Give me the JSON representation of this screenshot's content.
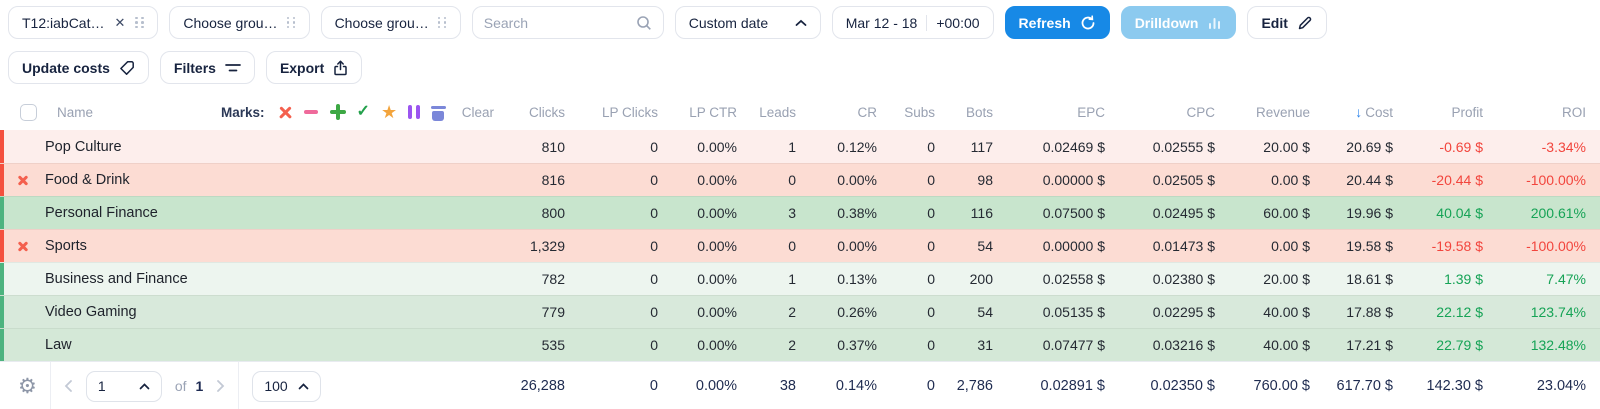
{
  "toolbar": {
    "token_pill": "T12:iabCat…",
    "group_pill_1": "Choose grou…",
    "group_pill_2": "Choose grou…",
    "search_placeholder": "Search",
    "date_preset": "Custom date",
    "date_range": "Mar 12 - 18",
    "timezone": "+00:00",
    "refresh_label": "Refresh",
    "drilldown_label": "Drilldown",
    "edit_label": "Edit"
  },
  "actions": {
    "update_costs_label": "Update costs",
    "filters_label": "Filters",
    "export_label": "Export"
  },
  "table": {
    "marks_label": "Marks:",
    "clear_label": "Clear",
    "name_column": "Name",
    "sort_column": "Cost",
    "sort_direction": "desc",
    "sort_arrow_glyph": "↓",
    "column_keys": [
      "clicks",
      "lp_clicks",
      "lp_ctr",
      "leads",
      "cr",
      "subs",
      "bots",
      "epc",
      "cpc",
      "revenue",
      "cost",
      "profit",
      "roi"
    ],
    "number_columns": [
      {
        "label": "Clicks"
      },
      {
        "label": "LP Clicks"
      },
      {
        "label": "LP CTR"
      },
      {
        "label": "Leads"
      },
      {
        "label": "CR"
      },
      {
        "label": "Subs"
      },
      {
        "label": "Bots"
      },
      {
        "label": "EPC"
      },
      {
        "label": "CPC"
      },
      {
        "label": "Revenue"
      },
      {
        "label": "Cost",
        "sorted": true
      },
      {
        "label": "Profit"
      },
      {
        "label": "ROI"
      }
    ],
    "marks": [
      {
        "icon": "x-mark-icon",
        "shape": "mk-x",
        "color": "#f4604e"
      },
      {
        "icon": "minus-mark-icon",
        "shape": "mk-minus",
        "color": "#ef6a9b"
      },
      {
        "icon": "plus-mark-icon",
        "shape": "mk-plus",
        "color": "#3da844"
      },
      {
        "icon": "check-mark-icon",
        "shape": "mk-check",
        "color": "#23a04b",
        "glyph": "✓"
      },
      {
        "icon": "star-mark-icon",
        "shape": "mk-star",
        "color": "#f3a43c",
        "glyph": "★"
      },
      {
        "icon": "pause-mark-icon",
        "shape": "mk-pause",
        "color": "#9b55f0"
      },
      {
        "icon": "trash-mark-icon",
        "shape": "mk-trash",
        "color": "#7b87d9"
      }
    ],
    "rows": [
      {
        "name": "Pop Culture",
        "marked": false,
        "tone": "red-light",
        "values": [
          "810",
          "0",
          "0.00%",
          "1",
          "0.12%",
          "0",
          "117",
          "0.02469 $",
          "0.02555 $",
          "20.00 $",
          "20.69 $",
          "-0.69 $",
          "-3.34%"
        ]
      },
      {
        "name": "Food & Drink",
        "marked": true,
        "tone": "red",
        "values": [
          "816",
          "0",
          "0.00%",
          "0",
          "0.00%",
          "0",
          "98",
          "0.00000 $",
          "0.02505 $",
          "0.00 $",
          "20.44 $",
          "-20.44 $",
          "-100.00%"
        ]
      },
      {
        "name": "Personal Finance",
        "marked": false,
        "tone": "green",
        "values": [
          "800",
          "0",
          "0.00%",
          "3",
          "0.38%",
          "0",
          "116",
          "0.07500 $",
          "0.02495 $",
          "60.00 $",
          "19.96 $",
          "40.04 $",
          "200.61%"
        ]
      },
      {
        "name": "Sports",
        "marked": true,
        "tone": "red",
        "values": [
          "1,329",
          "0",
          "0.00%",
          "0",
          "0.00%",
          "0",
          "54",
          "0.00000 $",
          "0.01473 $",
          "0.00 $",
          "19.58 $",
          "-19.58 $",
          "-100.00%"
        ]
      },
      {
        "name": "Business and Finance",
        "marked": false,
        "tone": "green-light",
        "values": [
          "782",
          "0",
          "0.00%",
          "1",
          "0.13%",
          "0",
          "200",
          "0.02558 $",
          "0.02380 $",
          "20.00 $",
          "18.61 $",
          "1.39 $",
          "7.47%"
        ]
      },
      {
        "name": "Video Gaming",
        "marked": false,
        "tone": "green-mid",
        "values": [
          "779",
          "0",
          "0.00%",
          "2",
          "0.26%",
          "0",
          "54",
          "0.05135 $",
          "0.02295 $",
          "40.00 $",
          "17.88 $",
          "22.12 $",
          "123.74%"
        ]
      },
      {
        "name": "Law",
        "marked": false,
        "tone": "green-mid2",
        "values": [
          "535",
          "0",
          "0.00%",
          "2",
          "0.37%",
          "0",
          "31",
          "0.07477 $",
          "0.03216 $",
          "40.00 $",
          "17.21 $",
          "22.79 $",
          "132.48%"
        ]
      }
    ],
    "totals": [
      "26,288",
      "0",
      "0.00%",
      "38",
      "0.14%",
      "0",
      "2,786",
      "0.02891 $",
      "0.02350 $",
      "760.00 $",
      "617.70 $",
      "142.30 $",
      "23.04%"
    ]
  },
  "footer": {
    "page": "1",
    "of_label": "of",
    "total_pages": "1",
    "page_size": "100"
  }
}
